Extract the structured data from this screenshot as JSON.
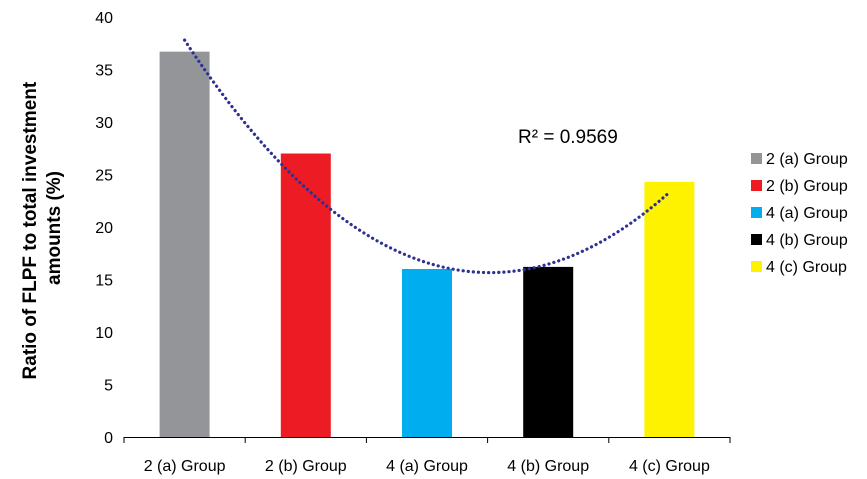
{
  "chart_data": {
    "type": "bar",
    "categories": [
      "2 (a) Group",
      "2 (b) Group",
      "4 (a) Group",
      "4 (b) Group",
      "4 (c) Group"
    ],
    "values": [
      36.7,
      27.0,
      16.0,
      16.2,
      24.3
    ],
    "colors": [
      "#939598",
      "#ed1c24",
      "#00aeef",
      "#000000",
      "#fff200"
    ],
    "ylabel_lines": [
      "Ratio of FLPF to total investment",
      "amounts (%)"
    ],
    "ylim": [
      0,
      40
    ],
    "yticks": [
      0,
      5,
      10,
      15,
      20,
      25,
      30,
      35,
      40
    ],
    "grid": false,
    "legend": {
      "position": "right",
      "entries": [
        "2 (a) Group",
        "2 (b) Group",
        "4 (a) Group",
        "4 (b) Group",
        "4 (c) Group"
      ]
    },
    "trendline": {
      "type": "polynomial-2",
      "style": "dotted",
      "color": "#2e3192",
      "x_start": 1,
      "x_end": 5,
      "values_at_categories": [
        37.8,
        23.5,
        16.6,
        17.2,
        23.3
      ],
      "r2_label": "R² = 0.9569"
    }
  }
}
